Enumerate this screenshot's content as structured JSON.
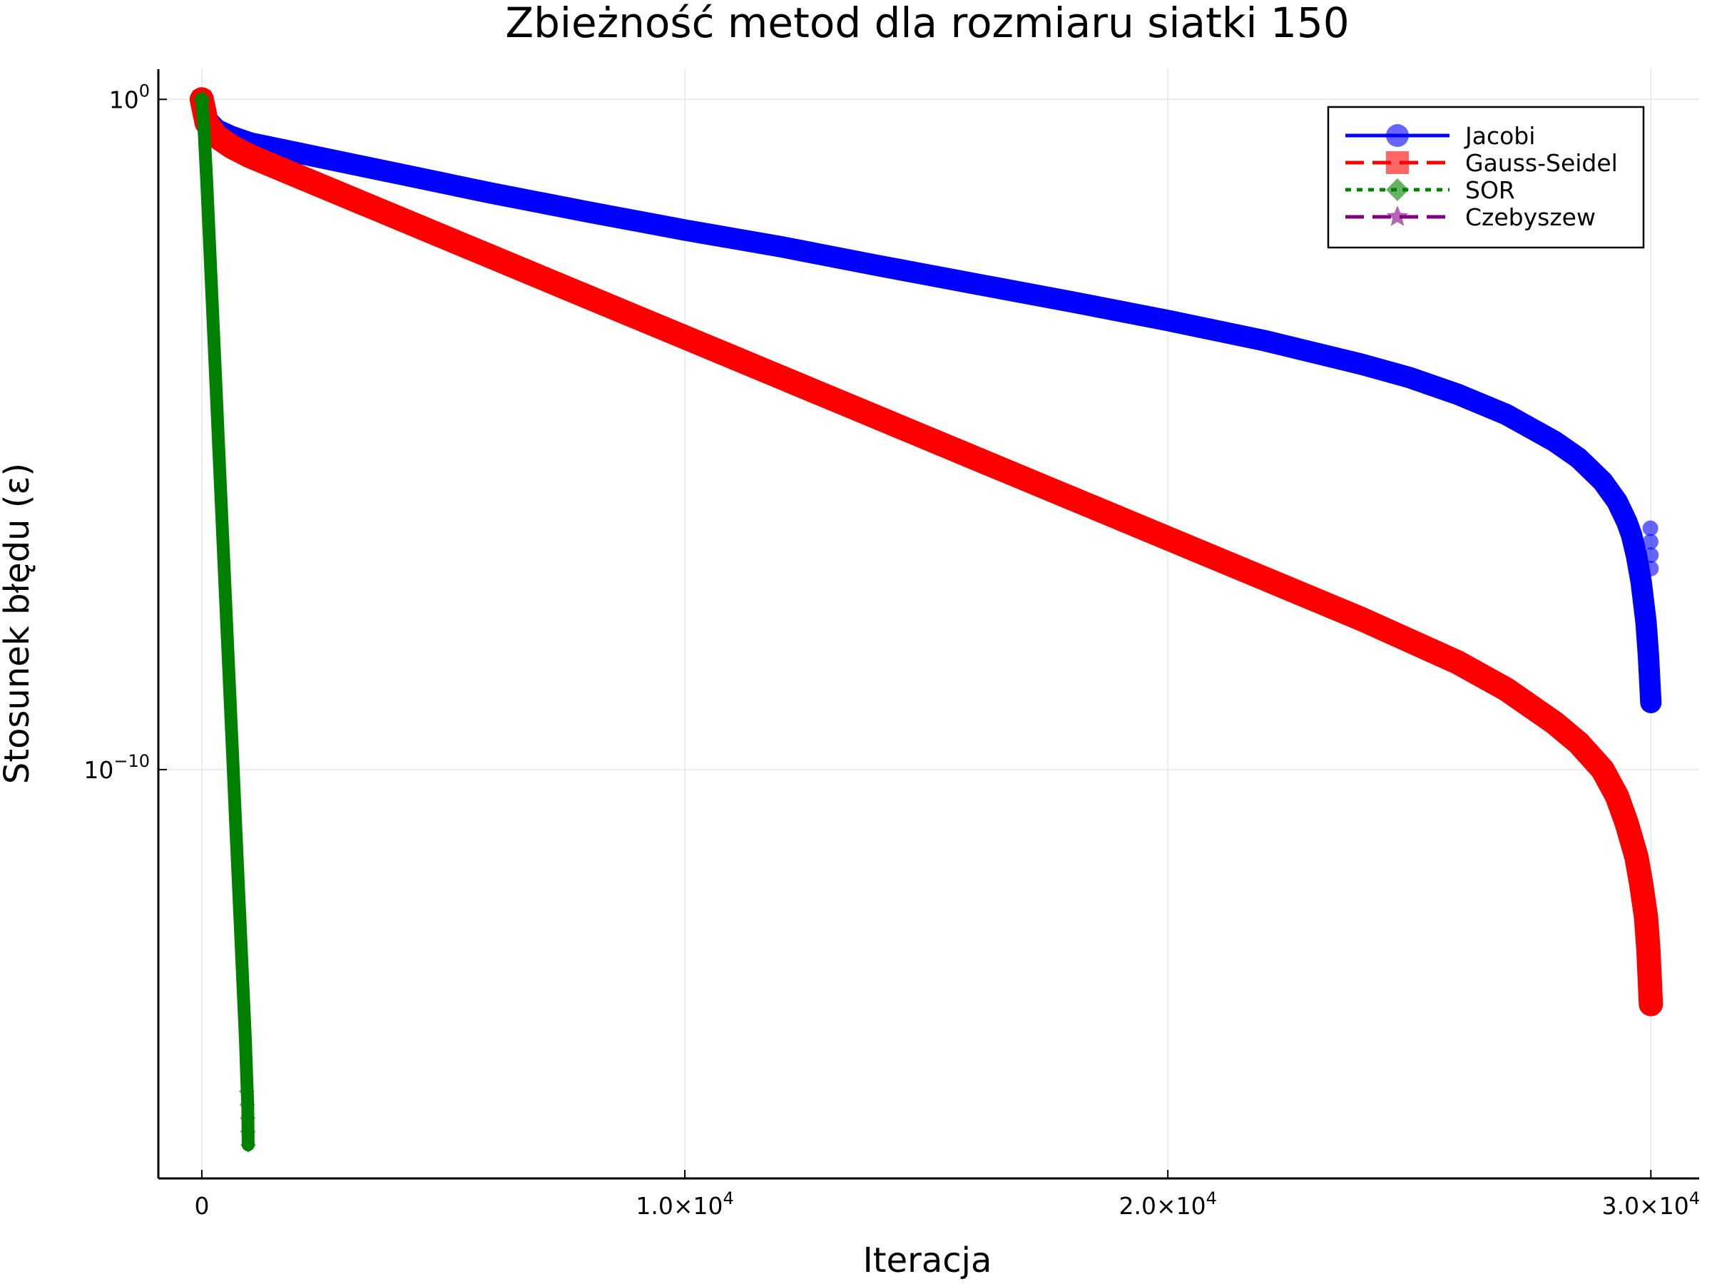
{
  "chart_data": {
    "type": "line",
    "title": "Zbieżność metod dla rozmiaru siatki 150",
    "xlabel": "Iteracja",
    "ylabel": "Stosunek błędu (ε)",
    "yscale": "log",
    "xlim": [
      -900,
      31000
    ],
    "ylim_log10": [
      -16.1,
      0.45
    ],
    "x_ticks": [
      {
        "value": 0,
        "base": "0",
        "exp": ""
      },
      {
        "value": 10000,
        "base": "1.0×10",
        "exp": "4"
      },
      {
        "value": 20000,
        "base": "2.0×10",
        "exp": "4"
      },
      {
        "value": 30000,
        "base": "3.0×10",
        "exp": "4"
      }
    ],
    "y_ticks": [
      {
        "log10": 0,
        "base": "10",
        "exp": "0"
      },
      {
        "log10": -10,
        "base": "10",
        "exp": "−10"
      }
    ],
    "grid": true,
    "legend_position": "top-right",
    "series": [
      {
        "name": "Jacobi",
        "color": "#0000ff",
        "marker": "circle",
        "line_style": "solid",
        "x": [
          0,
          100,
          300,
          600,
          1000,
          2000,
          4000,
          6000,
          8000,
          10000,
          12000,
          14000,
          16000,
          18000,
          20000,
          22000,
          24000,
          25000,
          26000,
          27000,
          28000,
          28500,
          29000,
          29300,
          29500,
          29600,
          29700,
          29800,
          29900,
          29950,
          30000
        ],
        "log10_y": [
          0,
          -0.3,
          -0.45,
          -0.55,
          -0.65,
          -0.8,
          -1.1,
          -1.4,
          -1.68,
          -1.95,
          -2.2,
          -2.48,
          -2.75,
          -3.02,
          -3.3,
          -3.6,
          -3.95,
          -4.15,
          -4.4,
          -4.7,
          -5.1,
          -5.35,
          -5.7,
          -6.0,
          -6.3,
          -6.5,
          -6.8,
          -7.2,
          -7.8,
          -8.3,
          -9.0
        ],
        "markers_x": [
          29990,
          29995,
          30000,
          30000
        ],
        "markers_log10_y": [
          -6.4,
          -6.6,
          -6.8,
          -7.0
        ]
      },
      {
        "name": "Gauss-Seidel",
        "color": "#ff0000",
        "marker": "square",
        "line_style": "dashed",
        "x": [
          0,
          100,
          300,
          600,
          1000,
          2000,
          4000,
          6000,
          8000,
          10000,
          12000,
          14000,
          16000,
          18000,
          20000,
          22000,
          24000,
          26000,
          27000,
          28000,
          28500,
          29000,
          29300,
          29500,
          29700,
          29800,
          29900,
          29950,
          30000
        ],
        "log10_y": [
          0,
          -0.35,
          -0.55,
          -0.7,
          -0.85,
          -1.15,
          -1.75,
          -2.35,
          -2.95,
          -3.55,
          -4.15,
          -4.75,
          -5.35,
          -5.95,
          -6.55,
          -7.15,
          -7.75,
          -8.4,
          -8.8,
          -9.3,
          -9.6,
          -10.0,
          -10.4,
          -10.8,
          -11.3,
          -11.7,
          -12.2,
          -12.7,
          -13.5
        ],
        "markers_x": [
          30000,
          30000,
          30000,
          30000
        ],
        "markers_log10_y": [
          -12.5,
          -12.85,
          -13.1,
          -13.4
        ]
      },
      {
        "name": "SOR",
        "color": "#008000",
        "marker": "diamond",
        "line_style": "dotted",
        "x": [
          0,
          50,
          100,
          150,
          200,
          250,
          300,
          350,
          400,
          450,
          500,
          550,
          600,
          650,
          700,
          750,
          800,
          850,
          900,
          930,
          950,
          960
        ],
        "log10_y": [
          0,
          -0.5,
          -1.2,
          -2.0,
          -2.8,
          -3.6,
          -4.4,
          -5.2,
          -6.0,
          -6.8,
          -7.6,
          -8.4,
          -9.2,
          -10.0,
          -10.8,
          -11.6,
          -12.4,
          -13.2,
          -14.0,
          -14.6,
          -15.0,
          -15.6
        ],
        "markers_x": [
          930,
          940,
          950,
          955,
          960
        ],
        "markers_log10_y": [
          -14.8,
          -15.0,
          -15.2,
          -15.4,
          -15.6
        ]
      },
      {
        "name": "Czebyszew",
        "color": "#800080",
        "marker": "star",
        "line_style": "dashed",
        "x": [],
        "log10_y": []
      }
    ]
  }
}
